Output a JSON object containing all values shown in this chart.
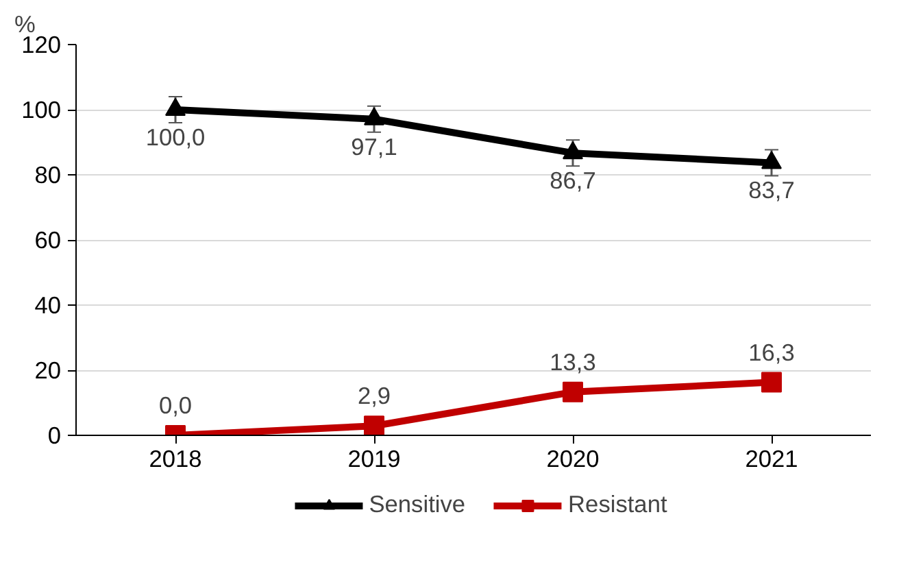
{
  "chart_data": {
    "type": "line",
    "ylabel": "%",
    "categories": [
      "2018",
      "2019",
      "2020",
      "2021"
    ],
    "series": [
      {
        "name": "Sensitive",
        "color": "#000000",
        "marker": "triangle",
        "values": [
          100.0,
          97.1,
          86.7,
          83.7
        ],
        "errors": [
          4,
          4,
          4,
          4
        ],
        "value_labels": [
          "100,0",
          "97,1",
          "86,7",
          "83,7"
        ]
      },
      {
        "name": "Resistant",
        "color": "#c00000",
        "marker": "square",
        "values": [
          0.0,
          2.9,
          13.3,
          16.3
        ],
        "value_labels": [
          "0,0",
          "2,9",
          "13,3",
          "16,3"
        ]
      }
    ],
    "ylim": [
      0,
      120
    ],
    "yticks": [
      0,
      20,
      40,
      60,
      80,
      100,
      120
    ],
    "grid": "y",
    "legend": "bottom"
  }
}
